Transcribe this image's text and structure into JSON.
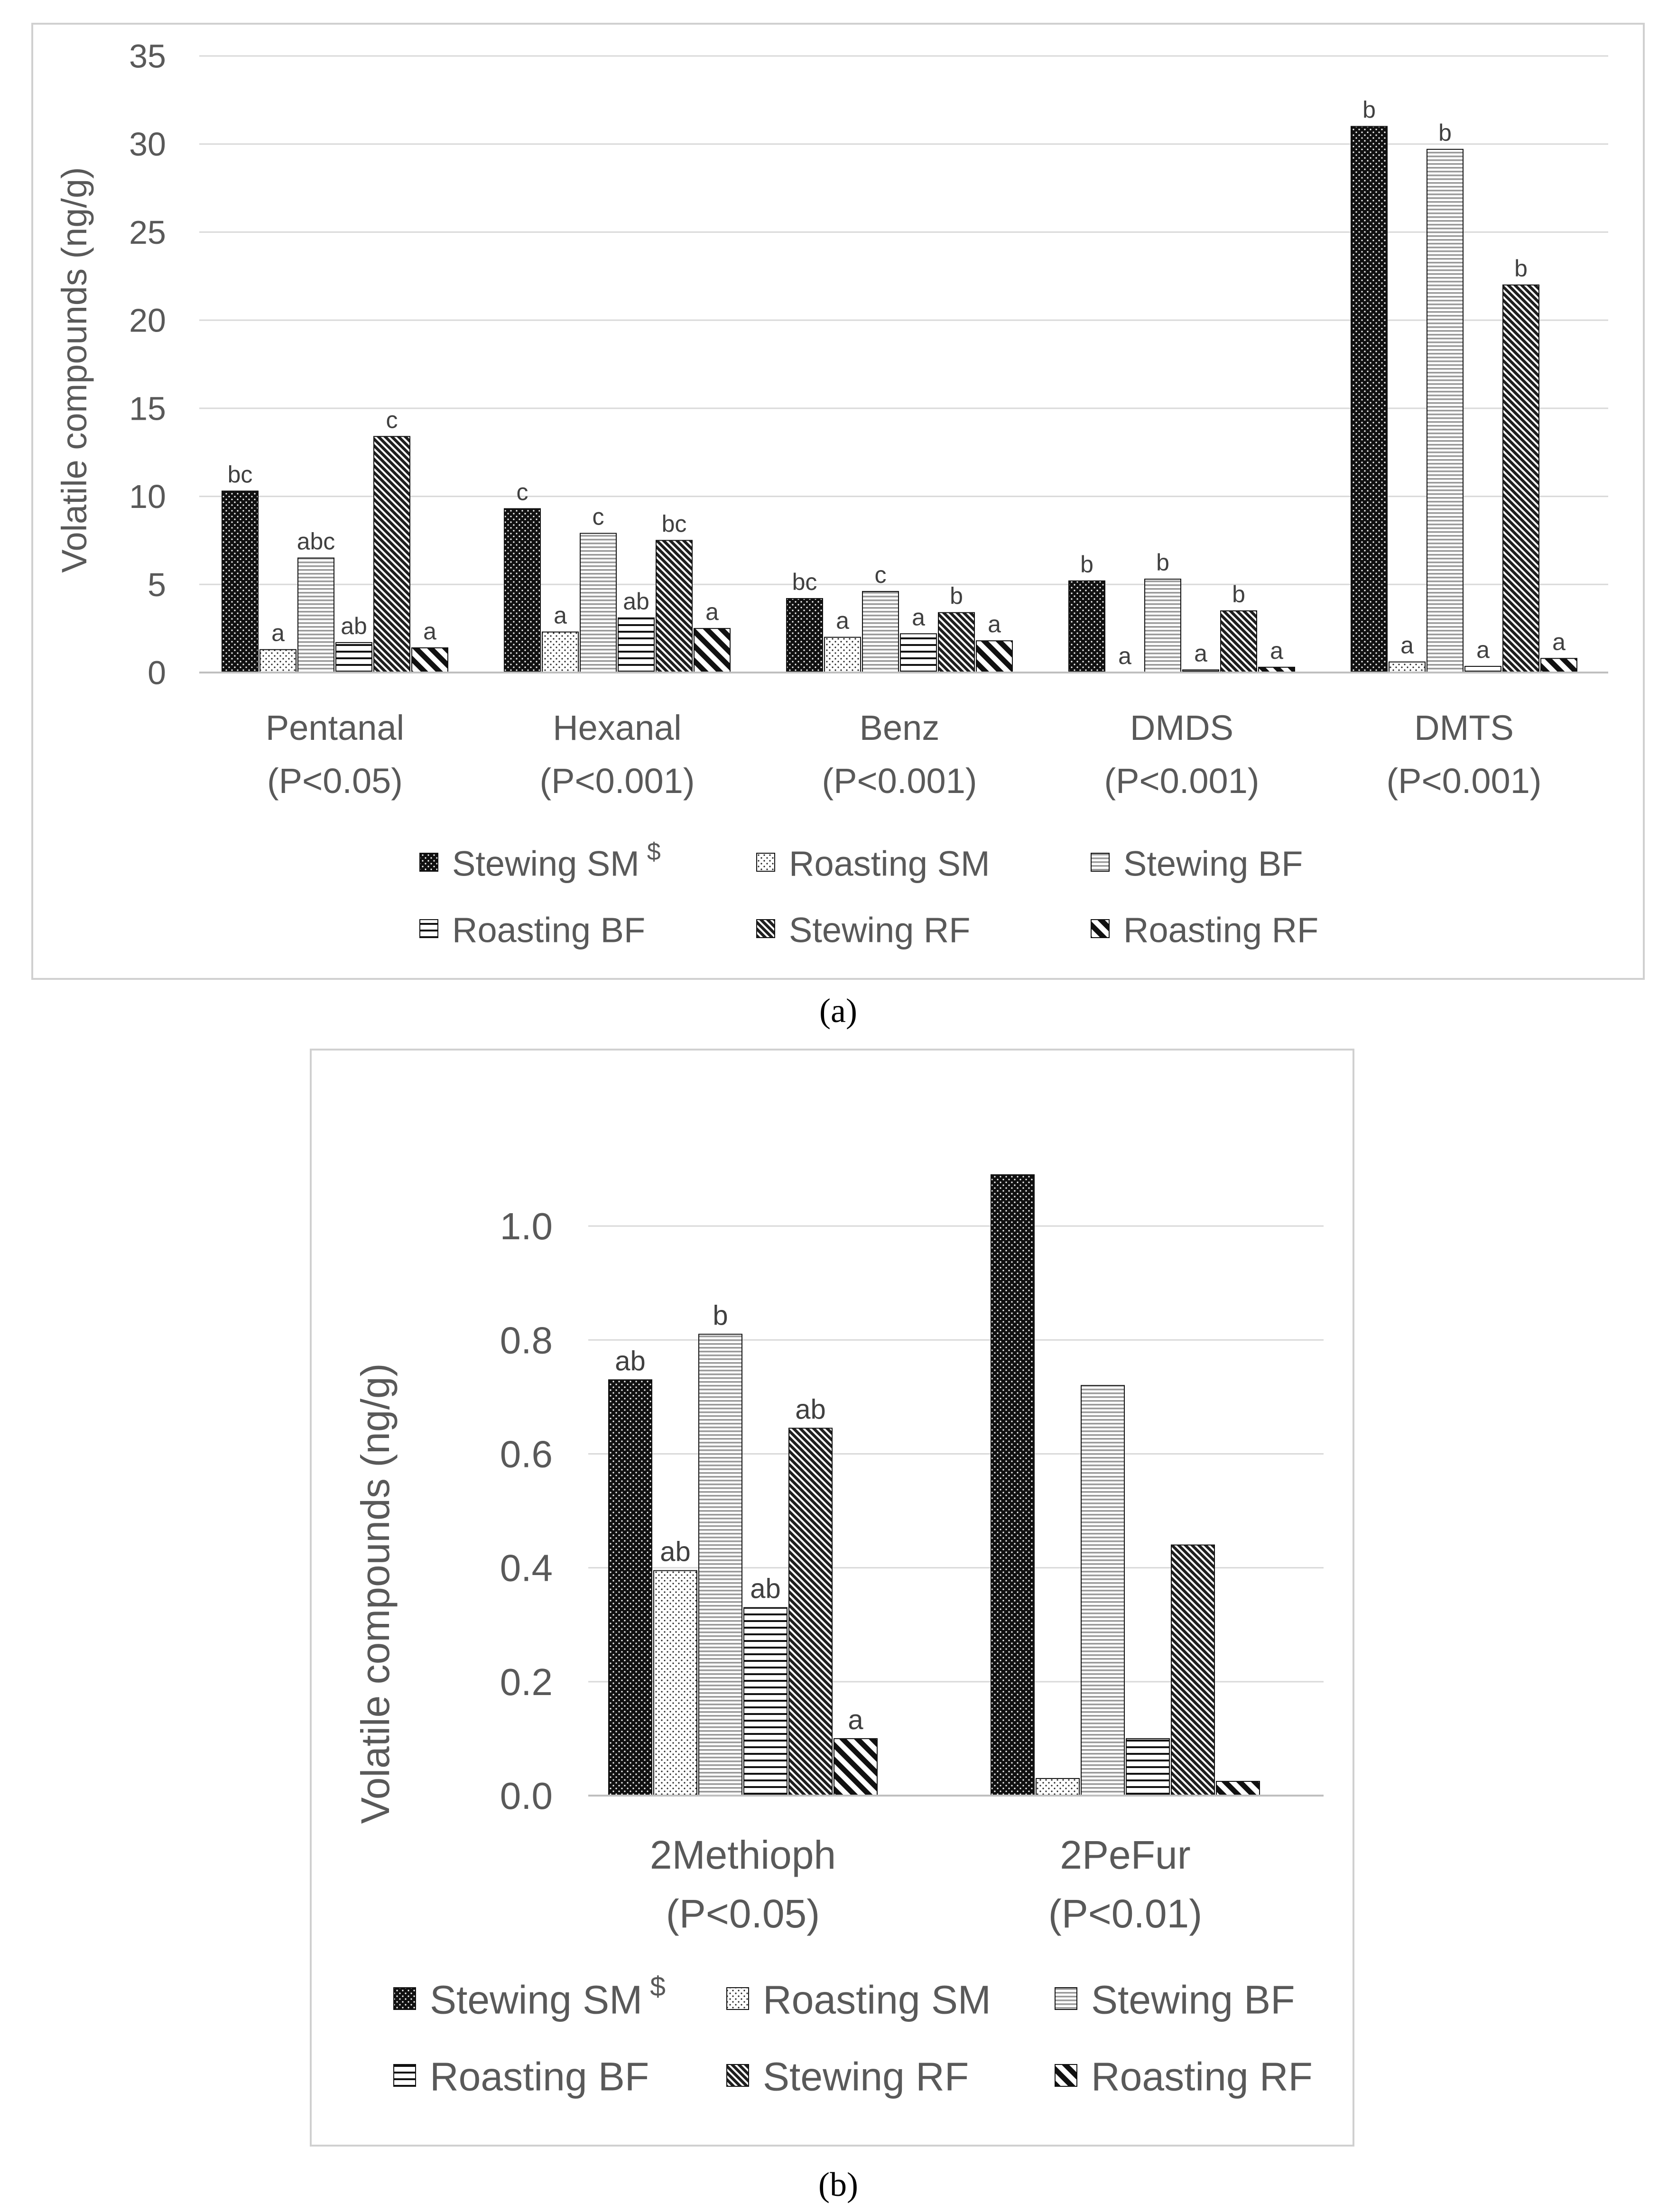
{
  "chart_data": [
    {
      "type": "bar",
      "caption": "(a)",
      "ylabel": "Volatile compounds  (ng/g)",
      "ylim": [
        0,
        35
      ],
      "yticks": [
        "0",
        "5",
        "10",
        "15",
        "20",
        "25",
        "30",
        "35"
      ],
      "grid": true,
      "legend_position": "bottom",
      "categories": [
        {
          "name": "Pentanal",
          "p": "(P<0.05)"
        },
        {
          "name": "Hexanal",
          "p": "(P<0.001)"
        },
        {
          "name": "Benz",
          "p": "(P<0.001)"
        },
        {
          "name": "DMDS",
          "p": "(P<0.001)"
        },
        {
          "name": "DMTS",
          "p": "(P<0.001)"
        }
      ],
      "series": [
        {
          "name": "Stewing SM",
          "marker": "$",
          "pattern": "dots-dark",
          "values": [
            10.3,
            9.3,
            4.2,
            5.2,
            31.0
          ],
          "letters": [
            "bc",
            "c",
            "bc",
            "b",
            "b"
          ]
        },
        {
          "name": "Roasting SM",
          "pattern": "dots-light",
          "values": [
            1.3,
            2.3,
            2.0,
            0.0,
            0.6
          ],
          "letters": [
            "a",
            "a",
            "a",
            "a",
            "a"
          ]
        },
        {
          "name": "Stewing BF",
          "pattern": "hlines-fine",
          "values": [
            6.5,
            7.9,
            4.6,
            5.3,
            29.7
          ],
          "letters": [
            "abc",
            "c",
            "c",
            "b",
            "b"
          ]
        },
        {
          "name": "Roasting BF",
          "pattern": "hlines-bold",
          "values": [
            1.7,
            3.1,
            2.2,
            0.15,
            0.35
          ],
          "letters": [
            "ab",
            "ab",
            "a",
            "a",
            "a"
          ]
        },
        {
          "name": "Stewing RF",
          "pattern": "diag-dense",
          "values": [
            13.4,
            7.5,
            3.4,
            3.5,
            22.0
          ],
          "letters": [
            "c",
            "bc",
            "b",
            "b",
            "b"
          ]
        },
        {
          "name": "Roasting RF",
          "pattern": "diag-wide",
          "values": [
            1.4,
            2.5,
            1.8,
            0.3,
            0.8
          ],
          "letters": [
            "a",
            "a",
            "a",
            "a",
            "a"
          ]
        }
      ]
    },
    {
      "type": "bar",
      "caption": "(b)",
      "ylabel": "Volatile compounds  (ng/g)",
      "ylim": [
        0,
        1.1
      ],
      "yticks": [
        "0.0",
        "0.2",
        "0.4",
        "0.6",
        "0.8",
        "1.0"
      ],
      "grid": true,
      "legend_position": "bottom",
      "categories": [
        {
          "name": "2Methioph",
          "p": "(P<0.05)"
        },
        {
          "name": "2PeFur",
          "p": "(P<0.01)"
        }
      ],
      "series": [
        {
          "name": "Stewing SM",
          "marker": "$",
          "pattern": "dots-dark",
          "values": [
            0.73,
            1.09
          ],
          "letters": [
            "ab",
            ""
          ]
        },
        {
          "name": "Roasting SM",
          "pattern": "dots-light",
          "values": [
            0.395,
            0.03
          ],
          "letters": [
            "ab",
            ""
          ]
        },
        {
          "name": "Stewing BF",
          "pattern": "hlines-fine",
          "values": [
            0.81,
            0.72
          ],
          "letters": [
            "b",
            ""
          ]
        },
        {
          "name": "Roasting BF",
          "pattern": "hlines-bold",
          "values": [
            0.33,
            0.1
          ],
          "letters": [
            "ab",
            ""
          ]
        },
        {
          "name": "Stewing RF",
          "pattern": "diag-dense",
          "values": [
            0.645,
            0.44
          ],
          "letters": [
            "ab",
            ""
          ]
        },
        {
          "name": "Roasting RF",
          "pattern": "diag-wide",
          "values": [
            0.1,
            0.025
          ],
          "letters": [
            "a",
            ""
          ]
        }
      ]
    }
  ]
}
